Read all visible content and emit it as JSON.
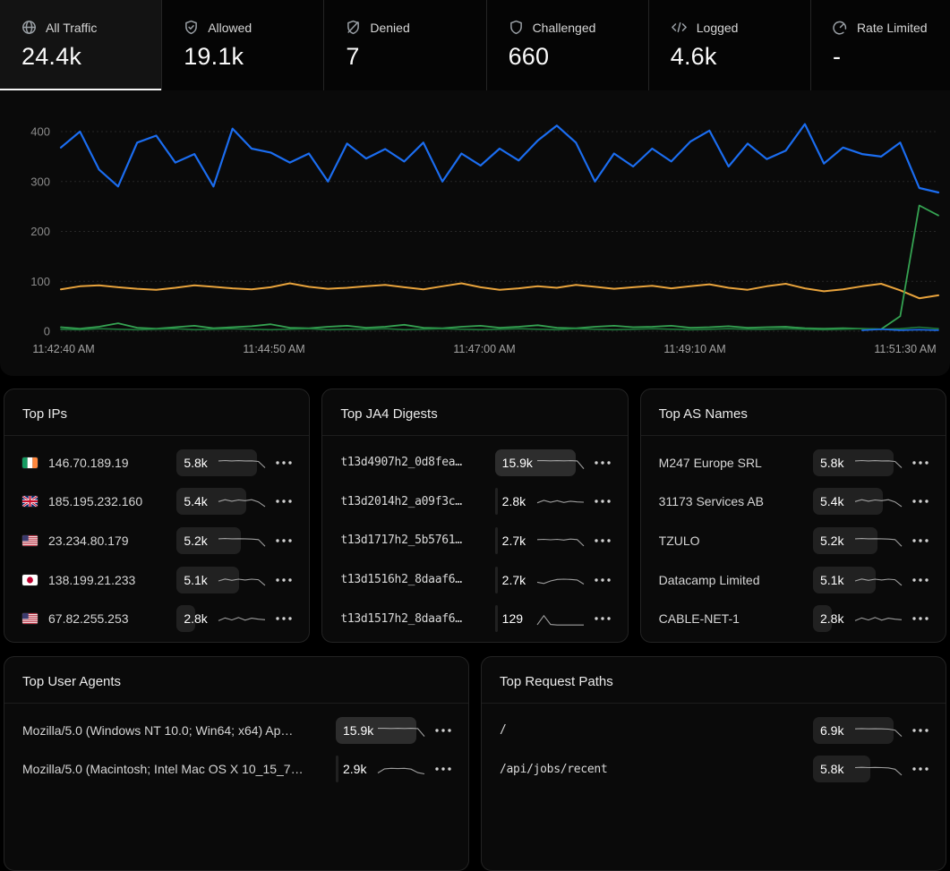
{
  "tabs": [
    {
      "label": "All Traffic",
      "value": "24.4k",
      "icon": "globe-icon",
      "selected": true
    },
    {
      "label": "Allowed",
      "value": "19.1k",
      "icon": "shield-check-icon",
      "selected": false
    },
    {
      "label": "Denied",
      "value": "7",
      "icon": "shield-off-icon",
      "selected": false
    },
    {
      "label": "Challenged",
      "value": "660",
      "icon": "shield-icon",
      "selected": false
    },
    {
      "label": "Logged",
      "value": "4.6k",
      "icon": "code-icon",
      "selected": false
    },
    {
      "label": "Rate Limited",
      "value": "-",
      "icon": "gauge-icon",
      "selected": false
    }
  ],
  "chart_data": {
    "type": "line",
    "title": "",
    "xlabel": "",
    "ylabel": "",
    "ylim": [
      0,
      430
    ],
    "y_ticks": [
      0,
      100,
      200,
      300,
      400
    ],
    "grid": true,
    "legend": "none",
    "x_tick_labels": [
      "11:42:40 AM",
      "11:44:50 AM",
      "11:47:00 AM",
      "11:49:10 AM",
      "11:51:30 AM"
    ],
    "series": [
      {
        "name": "allowed",
        "color": "#1b6df0",
        "width": 2.2,
        "values": [
          368,
          400,
          324,
          290,
          378,
          392,
          338,
          355,
          290,
          406,
          366,
          358,
          338,
          356,
          300,
          376,
          346,
          365,
          340,
          378,
          300,
          356,
          332,
          366,
          342,
          382,
          412,
          378,
          300,
          356,
          330,
          366,
          340,
          380,
          402,
          330,
          376,
          345,
          362,
          415,
          336,
          368,
          355,
          350,
          378,
          287,
          278
        ]
      },
      {
        "name": "logged",
        "color": "#e8a33c",
        "width": 2,
        "values": [
          84,
          90,
          92,
          88,
          85,
          83,
          87,
          92,
          89,
          86,
          84,
          88,
          96,
          89,
          85,
          87,
          90,
          93,
          88,
          84,
          90,
          96,
          88,
          83,
          86,
          90,
          87,
          93,
          89,
          85,
          88,
          91,
          86,
          90,
          94,
          87,
          83,
          90,
          95,
          86,
          80,
          84,
          90,
          95,
          82,
          66,
          72
        ]
      },
      {
        "name": "challenged",
        "color": "#35a352",
        "width": 1.8,
        "values": [
          8,
          5,
          9,
          16,
          7,
          5,
          8,
          11,
          6,
          8,
          10,
          14,
          7,
          6,
          9,
          11,
          7,
          9,
          13,
          7,
          6,
          9,
          11,
          7,
          9,
          12,
          7,
          6,
          9,
          11,
          8,
          9,
          11,
          7,
          8,
          10,
          7,
          8,
          9,
          6,
          5,
          6,
          5,
          4,
          30,
          252,
          232
        ]
      },
      {
        "name": "challenged-secondary",
        "color": "#1f7a3c",
        "width": 1.6,
        "values": [
          4,
          3,
          5,
          4,
          3,
          4,
          5,
          3,
          4,
          5,
          4,
          3,
          4,
          5,
          3,
          4,
          4,
          5,
          3,
          4,
          5,
          4,
          3,
          4,
          5,
          4,
          3,
          5,
          4,
          3,
          4,
          5,
          4,
          3,
          4,
          5,
          4,
          4,
          5,
          4,
          3,
          4,
          5,
          4,
          5,
          8,
          5
        ]
      },
      {
        "name": "denied-blip",
        "color": "#1b6df0",
        "width": 1.6,
        "values": [
          null,
          null,
          null,
          null,
          null,
          null,
          null,
          null,
          null,
          null,
          null,
          null,
          null,
          null,
          null,
          null,
          null,
          null,
          null,
          null,
          null,
          null,
          null,
          null,
          null,
          null,
          null,
          null,
          null,
          null,
          null,
          null,
          null,
          null,
          null,
          null,
          null,
          null,
          null,
          null,
          null,
          null,
          2,
          4,
          2,
          3,
          2
        ]
      }
    ]
  },
  "cards": [
    {
      "title": "Top IPs",
      "style": "flags",
      "wide": false,
      "rows": [
        {
          "label": "146.70.189.19",
          "flag": "ie",
          "count": 5800,
          "display": "5.8k",
          "highlight": false,
          "spark": [
            0.72,
            0.75,
            0.72,
            0.74,
            0.72,
            0.73,
            0.68,
            0.18
          ]
        },
        {
          "label": "185.195.232.160",
          "flag": "gb",
          "count": 5400,
          "display": "5.4k",
          "highlight": false,
          "spark": [
            0.55,
            0.7,
            0.58,
            0.68,
            0.62,
            0.7,
            0.52,
            0.15
          ]
        },
        {
          "label": "23.234.80.179",
          "flag": "us",
          "count": 5200,
          "display": "5.2k",
          "highlight": false,
          "spark": [
            0.72,
            0.74,
            0.72,
            0.73,
            0.72,
            0.7,
            0.66,
            0.12
          ]
        },
        {
          "label": "138.199.21.233",
          "flag": "jp",
          "count": 5100,
          "display": "5.1k",
          "highlight": false,
          "spark": [
            0.5,
            0.66,
            0.55,
            0.64,
            0.58,
            0.64,
            0.6,
            0.15
          ]
        },
        {
          "label": "67.82.255.253",
          "flag": "us",
          "count": 2800,
          "display": "2.8k",
          "highlight": false,
          "spark": [
            0.4,
            0.62,
            0.46,
            0.66,
            0.44,
            0.6,
            0.52,
            0.48
          ]
        }
      ]
    },
    {
      "title": "Top JA4 Digests",
      "style": "mono",
      "wide": false,
      "rows": [
        {
          "label": "t13d4907h2_0d8fea…",
          "count": 15900,
          "display": "15.9k",
          "highlight": true,
          "spark": [
            0.74,
            0.74,
            0.73,
            0.74,
            0.73,
            0.74,
            0.72,
            0.1
          ]
        },
        {
          "label": "t13d2014h2_a09f3c…",
          "count": 2800,
          "display": "2.8k",
          "highlight": false,
          "spark": [
            0.45,
            0.64,
            0.5,
            0.62,
            0.48,
            0.58,
            0.52,
            0.5
          ]
        },
        {
          "label": "t13d1717h2_5b5761…",
          "count": 2700,
          "display": "2.7k",
          "highlight": false,
          "spark": [
            0.66,
            0.68,
            0.64,
            0.68,
            0.62,
            0.7,
            0.66,
            0.15
          ]
        },
        {
          "label": "t13d1516h2_8daaf6…",
          "count": 2700,
          "display": "2.7k",
          "highlight": false,
          "spark": [
            0.4,
            0.3,
            0.5,
            0.62,
            0.64,
            0.62,
            0.58,
            0.25
          ]
        },
        {
          "label": "t13d1517h2_8daaf6…",
          "count": 129,
          "display": "129",
          "highlight": false,
          "spark": [
            0.08,
            0.8,
            0.1,
            0.06,
            0.06,
            0.06,
            0.06,
            0.06
          ]
        }
      ]
    },
    {
      "title": "Top AS Names",
      "style": "plain",
      "wide": false,
      "rows": [
        {
          "label": "M247 Europe SRL",
          "count": 5800,
          "display": "5.8k",
          "highlight": false,
          "spark": [
            0.72,
            0.75,
            0.72,
            0.74,
            0.72,
            0.73,
            0.68,
            0.18
          ]
        },
        {
          "label": "31173 Services AB",
          "count": 5400,
          "display": "5.4k",
          "highlight": false,
          "spark": [
            0.55,
            0.7,
            0.58,
            0.68,
            0.62,
            0.7,
            0.52,
            0.15
          ]
        },
        {
          "label": "TZULO",
          "count": 5200,
          "display": "5.2k",
          "highlight": false,
          "spark": [
            0.72,
            0.74,
            0.72,
            0.73,
            0.72,
            0.7,
            0.66,
            0.12
          ]
        },
        {
          "label": "Datacamp Limited",
          "count": 5100,
          "display": "5.1k",
          "highlight": false,
          "spark": [
            0.5,
            0.66,
            0.55,
            0.64,
            0.58,
            0.64,
            0.6,
            0.15
          ]
        },
        {
          "label": "CABLE-NET-1",
          "count": 2800,
          "display": "2.8k",
          "highlight": false,
          "spark": [
            0.4,
            0.62,
            0.46,
            0.66,
            0.44,
            0.6,
            0.52,
            0.48
          ]
        }
      ]
    },
    {
      "title": "Top User Agents",
      "style": "plain",
      "wide": true,
      "rows": [
        {
          "label": "Mozilla/5.0 (Windows NT 10.0; Win64; x64) Ap…",
          "count": 15900,
          "display": "15.9k",
          "highlight": true,
          "spark": [
            0.74,
            0.74,
            0.73,
            0.74,
            0.73,
            0.74,
            0.72,
            0.1
          ]
        },
        {
          "label": "Mozilla/5.0 (Macintosh; Intel Mac OS X 10_15_7…",
          "count": 2900,
          "display": "2.9k",
          "highlight": false,
          "spark": [
            0.25,
            0.58,
            0.62,
            0.6,
            0.62,
            0.56,
            0.28,
            0.18
          ]
        }
      ]
    },
    {
      "title": "Top Request Paths",
      "style": "mono",
      "wide": true,
      "rows": [
        {
          "label": "/",
          "count": 6900,
          "display": "6.9k",
          "highlight": false,
          "spark": [
            0.7,
            0.72,
            0.7,
            0.71,
            0.7,
            0.68,
            0.6,
            0.1
          ]
        },
        {
          "label": "/api/jobs/recent",
          "count": 5800,
          "display": "5.8k",
          "highlight": false,
          "spark": [
            0.68,
            0.7,
            0.68,
            0.69,
            0.68,
            0.66,
            0.55,
            0.08
          ]
        }
      ]
    }
  ],
  "misc": {
    "row_menu_icon": "ellipsis-icon",
    "colors": {
      "bar_bg": "#212121",
      "bar_bg_highlight": "#2d2d2d",
      "spark_stroke": "#b9b9b9",
      "tab_underline": "#f5f5f5"
    }
  }
}
